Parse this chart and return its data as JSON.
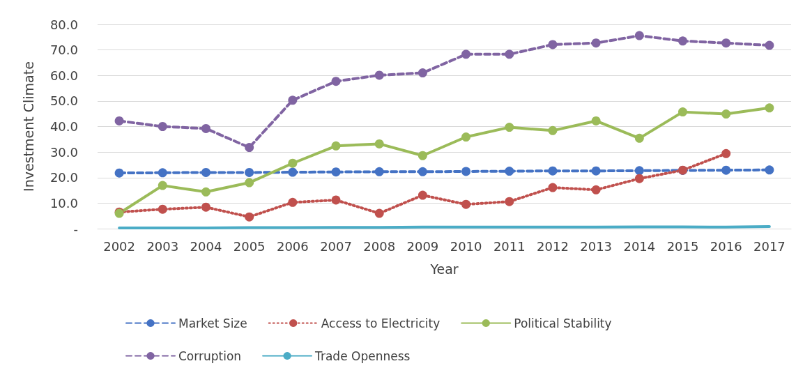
{
  "chart_data": {
    "type": "line",
    "xlabel": "Year",
    "ylabel": "Investment Climate",
    "categories": [
      "2002",
      "2003",
      "2004",
      "2005",
      "2006",
      "2007",
      "2008",
      "2009",
      "2010",
      "2011",
      "2012",
      "2013",
      "2014",
      "2015",
      "2016",
      "2017"
    ],
    "series": [
      {
        "name": "Market Size",
        "color": "#4472c4",
        "line_style": "dashed",
        "values": [
          21.8,
          21.9,
          22.0,
          22.0,
          22.1,
          22.2,
          22.3,
          22.3,
          22.4,
          22.5,
          22.6,
          22.6,
          22.7,
          22.8,
          22.9,
          23.0
        ]
      },
      {
        "name": "Access to Electricity",
        "color": "#c0504d",
        "line_style": "dotted",
        "values": [
          6.5,
          7.6,
          8.4,
          4.6,
          10.3,
          11.2,
          6.0,
          13.1,
          9.5,
          10.6,
          16.1,
          15.2,
          19.6,
          22.9,
          29.4,
          null
        ]
      },
      {
        "name": "Political Stability",
        "color": "#9bbb59",
        "line_style": "solid",
        "values": [
          6.0,
          16.9,
          14.4,
          18.0,
          25.6,
          32.4,
          33.2,
          28.6,
          35.9,
          39.7,
          38.4,
          42.2,
          35.4,
          45.7,
          44.9,
          47.3
        ]
      },
      {
        "name": "Corruption",
        "color": "#8064a2",
        "line_style": "dashed",
        "values": [
          42.2,
          40.0,
          39.2,
          31.8,
          50.3,
          57.7,
          60.1,
          61.0,
          68.3,
          68.3,
          72.1,
          72.7,
          75.6,
          73.5,
          72.7,
          71.8
        ]
      },
      {
        "name": "Trade Openness",
        "color": "#4bacc6",
        "line_style": "solid",
        "marker": "none",
        "values": [
          0.3,
          0.3,
          0.3,
          0.4,
          0.4,
          0.5,
          0.5,
          0.6,
          0.6,
          0.6,
          0.6,
          0.6,
          0.7,
          0.7,
          0.6,
          0.8
        ]
      }
    ],
    "ylim": [
      0,
      80
    ],
    "yticks": [
      {
        "value": 0,
        "label": "-"
      },
      {
        "value": 10,
        "label": "10.0"
      },
      {
        "value": 20,
        "label": "20.0"
      },
      {
        "value": 30,
        "label": "30.0"
      },
      {
        "value": 40,
        "label": "40.0"
      },
      {
        "value": 50,
        "label": "50.0"
      },
      {
        "value": 60,
        "label": "60.0"
      },
      {
        "value": 70,
        "label": "70.0"
      },
      {
        "value": 80,
        "label": "80.0"
      }
    ],
    "grid": "y",
    "legend": "bottom",
    "marker": "circle"
  }
}
